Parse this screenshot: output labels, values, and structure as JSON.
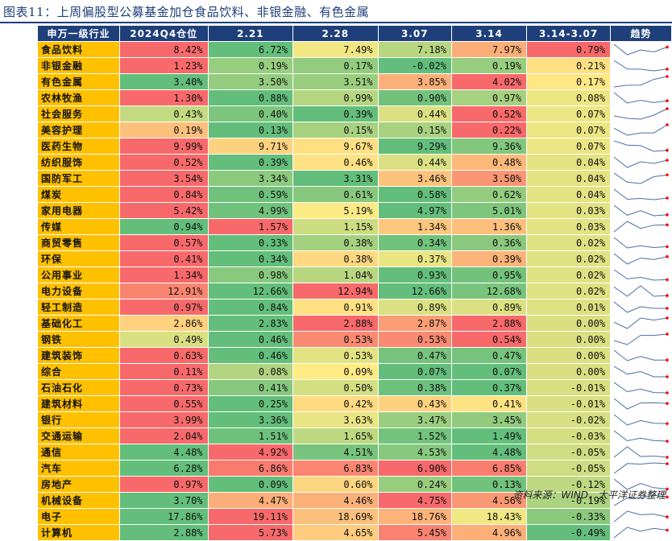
{
  "title": "图表11：上周偏股型公募基金加仓食品饮料、非银金融、有色金属",
  "source": "资料来源：WIND，太平洋证券整理",
  "columns": [
    "申万一级行业",
    "2024Q4仓位",
    "2.21",
    "2.28",
    "3.07",
    "3.14",
    "3.14-3.07",
    "趋势"
  ],
  "rows": [
    {
      "industry": "食品饮料",
      "q4": "8.42%",
      "d0221": "6.72%",
      "d0228": "7.49%",
      "d0307": "7.18%",
      "d0314": "7.97%",
      "change": "0.79%"
    },
    {
      "industry": "非银金融",
      "q4": "1.23%",
      "d0221": "0.19%",
      "d0228": "0.17%",
      "d0307": "-0.02%",
      "d0314": "0.19%",
      "change": "0.21%"
    },
    {
      "industry": "有色金属",
      "q4": "3.40%",
      "d0221": "3.50%",
      "d0228": "3.51%",
      "d0307": "3.85%",
      "d0314": "4.02%",
      "change": "0.17%"
    },
    {
      "industry": "农林牧渔",
      "q4": "1.30%",
      "d0221": "0.88%",
      "d0228": "0.99%",
      "d0307": "0.90%",
      "d0314": "0.97%",
      "change": "0.08%"
    },
    {
      "industry": "社会服务",
      "q4": "0.43%",
      "d0221": "0.40%",
      "d0228": "0.39%",
      "d0307": "0.44%",
      "d0314": "0.52%",
      "change": "0.07%"
    },
    {
      "industry": "美容护理",
      "q4": "0.19%",
      "d0221": "0.13%",
      "d0228": "0.15%",
      "d0307": "0.15%",
      "d0314": "0.22%",
      "change": "0.07%"
    },
    {
      "industry": "医药生物",
      "q4": "9.99%",
      "d0221": "9.71%",
      "d0228": "9.67%",
      "d0307": "9.29%",
      "d0314": "9.36%",
      "change": "0.07%"
    },
    {
      "industry": "纺织服饰",
      "q4": "0.52%",
      "d0221": "0.39%",
      "d0228": "0.46%",
      "d0307": "0.44%",
      "d0314": "0.48%",
      "change": "0.04%"
    },
    {
      "industry": "国防军工",
      "q4": "3.54%",
      "d0221": "3.34%",
      "d0228": "3.31%",
      "d0307": "3.46%",
      "d0314": "3.50%",
      "change": "0.04%"
    },
    {
      "industry": "煤炭",
      "q4": "0.84%",
      "d0221": "0.59%",
      "d0228": "0.61%",
      "d0307": "0.58%",
      "d0314": "0.62%",
      "change": "0.04%"
    },
    {
      "industry": "家用电器",
      "q4": "5.42%",
      "d0221": "4.99%",
      "d0228": "5.19%",
      "d0307": "4.97%",
      "d0314": "5.01%",
      "change": "0.03%"
    },
    {
      "industry": "传媒",
      "q4": "0.94%",
      "d0221": "1.57%",
      "d0228": "1.15%",
      "d0307": "1.34%",
      "d0314": "1.36%",
      "change": "0.03%"
    },
    {
      "industry": "商贸零售",
      "q4": "0.57%",
      "d0221": "0.33%",
      "d0228": "0.38%",
      "d0307": "0.34%",
      "d0314": "0.36%",
      "change": "0.02%"
    },
    {
      "industry": "环保",
      "q4": "0.41%",
      "d0221": "0.34%",
      "d0228": "0.38%",
      "d0307": "0.37%",
      "d0314": "0.39%",
      "change": "0.02%"
    },
    {
      "industry": "公用事业",
      "q4": "1.34%",
      "d0221": "0.98%",
      "d0228": "1.04%",
      "d0307": "0.93%",
      "d0314": "0.95%",
      "change": "0.02%"
    },
    {
      "industry": "电力设备",
      "q4": "12.91%",
      "d0221": "12.66%",
      "d0228": "12.94%",
      "d0307": "12.66%",
      "d0314": "12.68%",
      "change": "0.02%"
    },
    {
      "industry": "轻工制造",
      "q4": "0.97%",
      "d0221": "0.84%",
      "d0228": "0.91%",
      "d0307": "0.89%",
      "d0314": "0.89%",
      "change": "0.01%"
    },
    {
      "industry": "基础化工",
      "q4": "2.86%",
      "d0221": "2.83%",
      "d0228": "2.88%",
      "d0307": "2.87%",
      "d0314": "2.88%",
      "change": "0.00%"
    },
    {
      "industry": "钢铁",
      "q4": "0.49%",
      "d0221": "0.46%",
      "d0228": "0.53%",
      "d0307": "0.53%",
      "d0314": "0.54%",
      "change": "0.00%"
    },
    {
      "industry": "建筑装饰",
      "q4": "0.63%",
      "d0221": "0.46%",
      "d0228": "0.53%",
      "d0307": "0.47%",
      "d0314": "0.47%",
      "change": "0.00%"
    },
    {
      "industry": "综合",
      "q4": "0.11%",
      "d0221": "0.08%",
      "d0228": "0.09%",
      "d0307": "0.07%",
      "d0314": "0.07%",
      "change": "0.00%"
    },
    {
      "industry": "石油石化",
      "q4": "0.73%",
      "d0221": "0.41%",
      "d0228": "0.50%",
      "d0307": "0.38%",
      "d0314": "0.37%",
      "change": "-0.01%"
    },
    {
      "industry": "建筑材料",
      "q4": "0.55%",
      "d0221": "0.25%",
      "d0228": "0.42%",
      "d0307": "0.43%",
      "d0314": "0.41%",
      "change": "-0.01%"
    },
    {
      "industry": "银行",
      "q4": "3.99%",
      "d0221": "3.36%",
      "d0228": "3.63%",
      "d0307": "3.47%",
      "d0314": "3.45%",
      "change": "-0.02%"
    },
    {
      "industry": "交通运输",
      "q4": "2.04%",
      "d0221": "1.51%",
      "d0228": "1.65%",
      "d0307": "1.52%",
      "d0314": "1.49%",
      "change": "-0.03%"
    },
    {
      "industry": "通信",
      "q4": "4.48%",
      "d0221": "4.92%",
      "d0228": "4.51%",
      "d0307": "4.53%",
      "d0314": "4.48%",
      "change": "-0.05%"
    },
    {
      "industry": "汽车",
      "q4": "6.28%",
      "d0221": "6.86%",
      "d0228": "6.83%",
      "d0307": "6.90%",
      "d0314": "6.85%",
      "change": "-0.05%"
    },
    {
      "industry": "房地产",
      "q4": "0.97%",
      "d0221": "0.09%",
      "d0228": "0.60%",
      "d0307": "0.24%",
      "d0314": "0.13%",
      "change": "-0.12%"
    },
    {
      "industry": "机械设备",
      "q4": "3.70%",
      "d0221": "4.47%",
      "d0228": "4.46%",
      "d0307": "4.75%",
      "d0314": "4.56%",
      "change": "-0.19%"
    },
    {
      "industry": "电子",
      "q4": "17.86%",
      "d0221": "19.11%",
      "d0228": "18.69%",
      "d0307": "18.76%",
      "d0314": "18.43%",
      "change": "-0.33%"
    },
    {
      "industry": "计算机",
      "q4": "2.88%",
      "d0221": "5.73%",
      "d0228": "4.65%",
      "d0307": "5.45%",
      "d0314": "4.96%",
      "change": "-0.49%"
    }
  ],
  "colors": {
    "header_bg": "#1f3f7a",
    "industry_bg": "#ffc000",
    "scale_low": "#63be7b",
    "scale_mid": "#ffeb84",
    "scale_high": "#f8696b",
    "sparkline": "#4a6ea9",
    "sparkline_end": "#ff0000"
  }
}
